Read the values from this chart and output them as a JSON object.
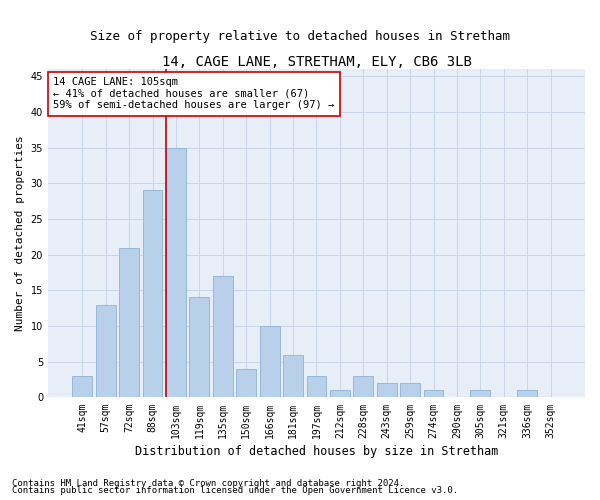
{
  "title1": "14, CAGE LANE, STRETHAM, ELY, CB6 3LB",
  "title2": "Size of property relative to detached houses in Stretham",
  "xlabel": "Distribution of detached houses by size in Stretham",
  "ylabel": "Number of detached properties",
  "categories": [
    "41sqm",
    "57sqm",
    "72sqm",
    "88sqm",
    "103sqm",
    "119sqm",
    "135sqm",
    "150sqm",
    "166sqm",
    "181sqm",
    "197sqm",
    "212sqm",
    "228sqm",
    "243sqm",
    "259sqm",
    "274sqm",
    "290sqm",
    "305sqm",
    "321sqm",
    "336sqm",
    "352sqm"
  ],
  "values": [
    3,
    13,
    21,
    29,
    35,
    14,
    17,
    4,
    10,
    6,
    3,
    1,
    3,
    2,
    2,
    1,
    0,
    1,
    0,
    1,
    0
  ],
  "bar_color": "#b8d0ea",
  "bar_edge_color": "#8db4d8",
  "vline_x_index": 4,
  "vline_color": "#cc0000",
  "annotation_text": "14 CAGE LANE: 105sqm\n← 41% of detached houses are smaller (67)\n59% of semi-detached houses are larger (97) →",
  "annotation_box_color": "#ffffff",
  "annotation_box_edge_color": "#cc0000",
  "ylim": [
    0,
    46
  ],
  "yticks": [
    0,
    5,
    10,
    15,
    20,
    25,
    30,
    35,
    40,
    45
  ],
  "grid_color": "#c8d4e8",
  "background_color": "#e8eef8",
  "footnote1": "Contains HM Land Registry data © Crown copyright and database right 2024.",
  "footnote2": "Contains public sector information licensed under the Open Government Licence v3.0.",
  "title1_fontsize": 10,
  "title2_fontsize": 9,
  "xlabel_fontsize": 8.5,
  "ylabel_fontsize": 8,
  "tick_fontsize": 7,
  "annotation_fontsize": 7.5,
  "footnote_fontsize": 6.5
}
